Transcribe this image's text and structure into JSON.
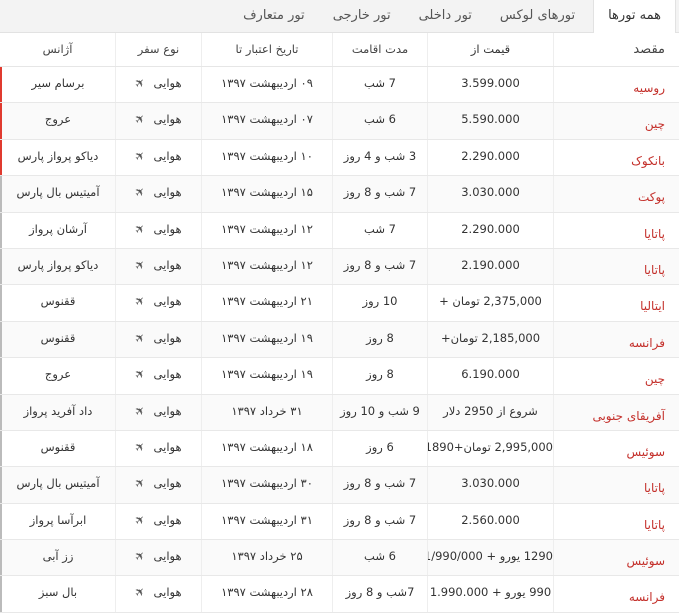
{
  "tabs": [
    {
      "label": "همه تورها",
      "active": true
    },
    {
      "label": "تورهای لوکس",
      "active": false
    },
    {
      "label": "تور داخلی",
      "active": false
    },
    {
      "label": "تور خارجی",
      "active": false
    },
    {
      "label": "تور متعارف",
      "active": false
    }
  ],
  "columns": {
    "destination": "مقصد",
    "price": "قیمت از",
    "stay": "مدت اقامت",
    "valid_until": "تاریخ اعتبار تا",
    "travel_type": "نوع سفر",
    "agency": "آژانس"
  },
  "colors": {
    "accent": "#c4302b",
    "bar_red": "#e03a2f",
    "bar_gray": "#bbbbbb"
  },
  "rows": [
    {
      "destination": "روسیه",
      "price": "3.599.000",
      "stay": "7 شب",
      "valid_until": "۰۹ اردیبهشت ۱۳۹۷",
      "travel_type": "هوایی",
      "agency": "برسام سیر",
      "bar": "red"
    },
    {
      "destination": "چین",
      "price": "5.590.000",
      "stay": "6 شب",
      "valid_until": "۰۷ اردیبهشت ۱۳۹۷",
      "travel_type": "هوایی",
      "agency": "عروج",
      "bar": "red"
    },
    {
      "destination": "بانکوک",
      "price": "2.290.000",
      "stay": "3 شب و 4 روز",
      "valid_until": "۱۰ اردیبهشت ۱۳۹۷",
      "travel_type": "هوایی",
      "agency": "دیاکو پرواز پارس",
      "bar": "red"
    },
    {
      "destination": "پوکت",
      "price": "3.030.000",
      "stay": "7 شب و 8 روز",
      "valid_until": "۱۵ اردیبهشت ۱۳۹۷",
      "travel_type": "هوایی",
      "agency": "آمیتیس بال پارس",
      "bar": "gray"
    },
    {
      "destination": "پاتایا",
      "price": "2.290.000",
      "stay": "7 شب",
      "valid_until": "۱۲ اردیبهشت ۱۳۹۷",
      "travel_type": "هوایی",
      "agency": "آرشان پرواز",
      "bar": "gray"
    },
    {
      "destination": "پاتایا",
      "price": "2.190.000",
      "stay": "7 شب و 8 روز",
      "valid_until": "۱۲ اردیبهشت ۱۳۹۷",
      "travel_type": "هوایی",
      "agency": "دیاکو پرواز پارس",
      "bar": "gray"
    },
    {
      "destination": "ایتالیا",
      "price": "2,375,000 تومان +",
      "stay": "10 روز",
      "valid_until": "۲۱ اردیبهشت ۱۳۹۷",
      "travel_type": "هوایی",
      "agency": "ققنوس",
      "bar": "gray"
    },
    {
      "destination": "فرانسه",
      "price": "2,185,000 تومان+",
      "stay": "8 روز",
      "valid_until": "۱۹ اردیبهشت ۱۳۹۷",
      "travel_type": "هوایی",
      "agency": "ققنوس",
      "bar": "gray"
    },
    {
      "destination": "چین",
      "price": "6.190.000",
      "stay": "8 روز",
      "valid_until": "۱۹ اردیبهشت ۱۳۹۷",
      "travel_type": "هوایی",
      "agency": "عروج",
      "bar": "gray"
    },
    {
      "destination": "آفریقای جنوبی",
      "price": "شروع از 2950 دلار",
      "stay": "9 شب و 10 روز",
      "valid_until": "۳۱ خرداد ۱۳۹۷",
      "travel_type": "هوایی",
      "agency": "داد آفرید پرواز",
      "bar": "gray"
    },
    {
      "destination": "سوئیس",
      "price": "2,995,000 تومان+1890یورو",
      "stay": "6 روز",
      "valid_until": "۱۸ اردیبهشت ۱۳۹۷",
      "travel_type": "هوایی",
      "agency": "ققنوس",
      "bar": "gray"
    },
    {
      "destination": "پاتایا",
      "price": "3.030.000",
      "stay": "7 شب و 8 روز",
      "valid_until": "۳۰ اردیبهشت ۱۳۹۷",
      "travel_type": "هوایی",
      "agency": "آمیتیس بال پارس",
      "bar": "gray"
    },
    {
      "destination": "پاتایا",
      "price": "2.560.000",
      "stay": "7 شب و 8 روز",
      "valid_until": "۳۱ اردیبهشت ۱۳۹۷",
      "travel_type": "هوایی",
      "agency": "ابرآسا پرواز",
      "bar": "gray"
    },
    {
      "destination": "سوئیس",
      "price": "1290 یورو + 1/990/000",
      "stay": "6 شب",
      "valid_until": "۲۵ خرداد ۱۳۹۷",
      "travel_type": "هوایی",
      "agency": "زز آبی",
      "bar": "gray"
    },
    {
      "destination": "فرانسه",
      "price": "990 یورو + 1.990.000",
      "stay": "7شب و 8 روز",
      "valid_until": "۲۸ اردیبهشت ۱۳۹۷",
      "travel_type": "هوایی",
      "agency": "بال سبز",
      "bar": "gray"
    }
  ],
  "icons": {
    "travel_type": "airplane-icon"
  }
}
